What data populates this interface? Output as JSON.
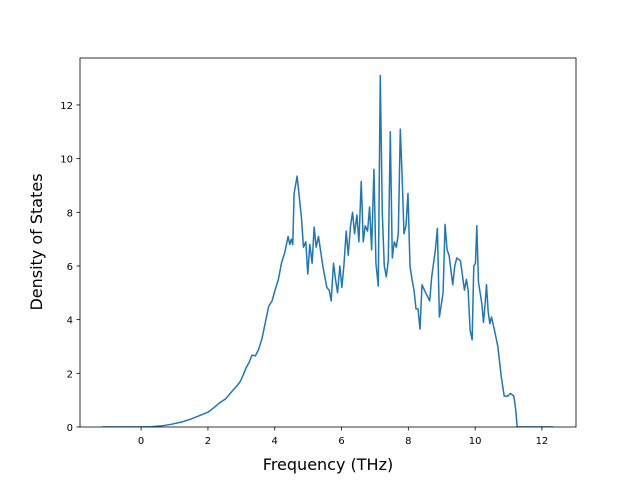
{
  "chart_data": {
    "type": "line",
    "xlabel": "Frequency (THz)",
    "ylabel": "Density of States",
    "color": "#1f77b4",
    "x": [
      -1.17,
      -0.5,
      0,
      0.3,
      0.6,
      0.9,
      1.2,
      1.5,
      1.8,
      2.0,
      2.18,
      2.35,
      2.53,
      2.7,
      2.88,
      2.97,
      3.06,
      3.14,
      3.23,
      3.32,
      3.42,
      3.52,
      3.62,
      3.72,
      3.82,
      3.92,
      4.01,
      4.11,
      4.2,
      4.3,
      4.4,
      4.45,
      4.5,
      4.54,
      4.58,
      4.67,
      4.8,
      4.86,
      4.93,
      4.99,
      5.05,
      5.12,
      5.18,
      5.24,
      5.31,
      5.44,
      5.56,
      5.63,
      5.69,
      5.76,
      5.82,
      5.88,
      5.95,
      6.01,
      6.07,
      6.14,
      6.2,
      6.27,
      6.33,
      6.39,
      6.46,
      6.52,
      6.59,
      6.65,
      6.71,
      6.78,
      6.84,
      6.9,
      6.97,
      7.03,
      7.1,
      7.16,
      7.22,
      7.28,
      7.34,
      7.4,
      7.46,
      7.52,
      7.58,
      7.64,
      7.7,
      7.76,
      7.81,
      7.87,
      7.93,
      7.99,
      8.05,
      8.11,
      8.17,
      8.23,
      8.29,
      8.35,
      8.41,
      8.52,
      8.64,
      8.7,
      8.81,
      8.87,
      8.93,
      9.04,
      9.1,
      9.16,
      9.22,
      9.33,
      9.39,
      9.45,
      9.56,
      9.68,
      9.74,
      9.79,
      9.85,
      9.91,
      9.96,
      10.01,
      10.05,
      10.1,
      10.2,
      10.25,
      10.3,
      10.34,
      10.39,
      10.44,
      10.49,
      10.58,
      10.68,
      10.78,
      10.87,
      10.97,
      11.06,
      11.16,
      11.21,
      11.26,
      11.5,
      12.33
    ],
    "values": [
      0,
      0,
      0,
      0.01,
      0.04,
      0.1,
      0.18,
      0.3,
      0.45,
      0.55,
      0.72,
      0.9,
      1.05,
      1.3,
      1.55,
      1.7,
      1.95,
      2.2,
      2.4,
      2.68,
      2.65,
      2.9,
      3.3,
      3.9,
      4.5,
      4.7,
      5.1,
      5.5,
      6.1,
      6.5,
      7.1,
      6.8,
      7.0,
      6.8,
      8.7,
      9.35,
      7.8,
      6.7,
      6.9,
      5.7,
      6.8,
      6.1,
      7.45,
      6.7,
      7.1,
      6.0,
      5.2,
      5.1,
      4.7,
      6.1,
      5.5,
      5.0,
      6.0,
      5.2,
      6.0,
      7.3,
      6.4,
      7.5,
      8.0,
      7.2,
      7.9,
      6.9,
      9.15,
      6.9,
      7.5,
      7.3,
      8.2,
      6.6,
      9.6,
      6.1,
      5.25,
      13.1,
      8.0,
      6.0,
      5.6,
      6.2,
      11.0,
      6.3,
      6.9,
      6.7,
      7.2,
      11.1,
      9.5,
      7.2,
      7.5,
      8.7,
      6.0,
      5.5,
      5.1,
      4.4,
      4.4,
      3.65,
      5.3,
      5.0,
      4.7,
      5.6,
      6.6,
      7.4,
      4.1,
      5.0,
      7.55,
      6.6,
      6.4,
      5.3,
      6.0,
      6.3,
      6.2,
      5.1,
      5.5,
      5.1,
      3.6,
      3.25,
      6.0,
      6.1,
      7.5,
      5.4,
      4.6,
      3.9,
      4.6,
      5.3,
      4.3,
      3.85,
      4.1,
      3.6,
      3.0,
      1.9,
      1.15,
      1.15,
      1.25,
      1.15,
      0.7,
      0,
      0,
      0
    ],
    "xlim": [
      -1.83,
      13.02
    ],
    "xticks": [
      0,
      2,
      4,
      6,
      8,
      10,
      12
    ],
    "ylim": [
      0,
      13.75
    ],
    "yticks": [
      0,
      2,
      4,
      6,
      8,
      10,
      12
    ]
  }
}
